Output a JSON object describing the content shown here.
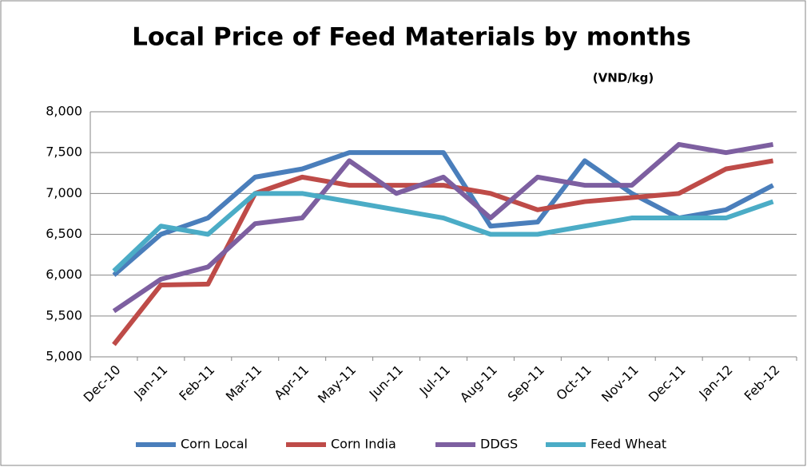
{
  "chart_data": {
    "type": "line",
    "title": "Local Price of Feed Materials by months",
    "subtitle": "(VND/kg)",
    "categories": [
      "Dec-10",
      "Jan-11",
      "Feb-11",
      "Mar-11",
      "Apr-11",
      "May-11",
      "Jun-11",
      "Jul-11",
      "Aug-11",
      "Sep-11",
      "Oct-11",
      "Nov-11",
      "Dec-11",
      "Jan-12",
      "Feb-12"
    ],
    "series": [
      {
        "name": "Corn Local",
        "color": "#4a7ebb",
        "values": [
          6000,
          6500,
          6700,
          7200,
          7300,
          7500,
          7500,
          7500,
          6600,
          6650,
          7400,
          7000,
          6700,
          6800,
          7100
        ]
      },
      {
        "name": "Corn India",
        "color": "#be4b48",
        "values": [
          5150,
          5880,
          5890,
          7000,
          7200,
          7100,
          7100,
          7100,
          7000,
          6800,
          6900,
          6950,
          7000,
          7300,
          7400
        ]
      },
      {
        "name": "DDGS",
        "color": "#7d5fa0",
        "values": [
          5560,
          5950,
          6100,
          6630,
          6700,
          7400,
          7000,
          7200,
          6700,
          7200,
          7100,
          7100,
          7600,
          7500,
          7600
        ]
      },
      {
        "name": "Feed Wheat",
        "color": "#4bacc6",
        "values": [
          6050,
          6600,
          6500,
          7000,
          7000,
          6900,
          6800,
          6700,
          6500,
          6500,
          6600,
          6700,
          6700,
          6700,
          6900
        ]
      }
    ],
    "ylim": [
      5000,
      8000
    ],
    "yticks": [
      {
        "value": 5000,
        "label": "5,000"
      },
      {
        "value": 5500,
        "label": "5,500"
      },
      {
        "value": 6000,
        "label": "6,000"
      },
      {
        "value": 6500,
        "label": "6,500"
      },
      {
        "value": 7000,
        "label": "7,000"
      },
      {
        "value": 7500,
        "label": "7,500"
      },
      {
        "value": 8000,
        "label": "8,000"
      }
    ],
    "grid": true,
    "legend": "bottom"
  }
}
